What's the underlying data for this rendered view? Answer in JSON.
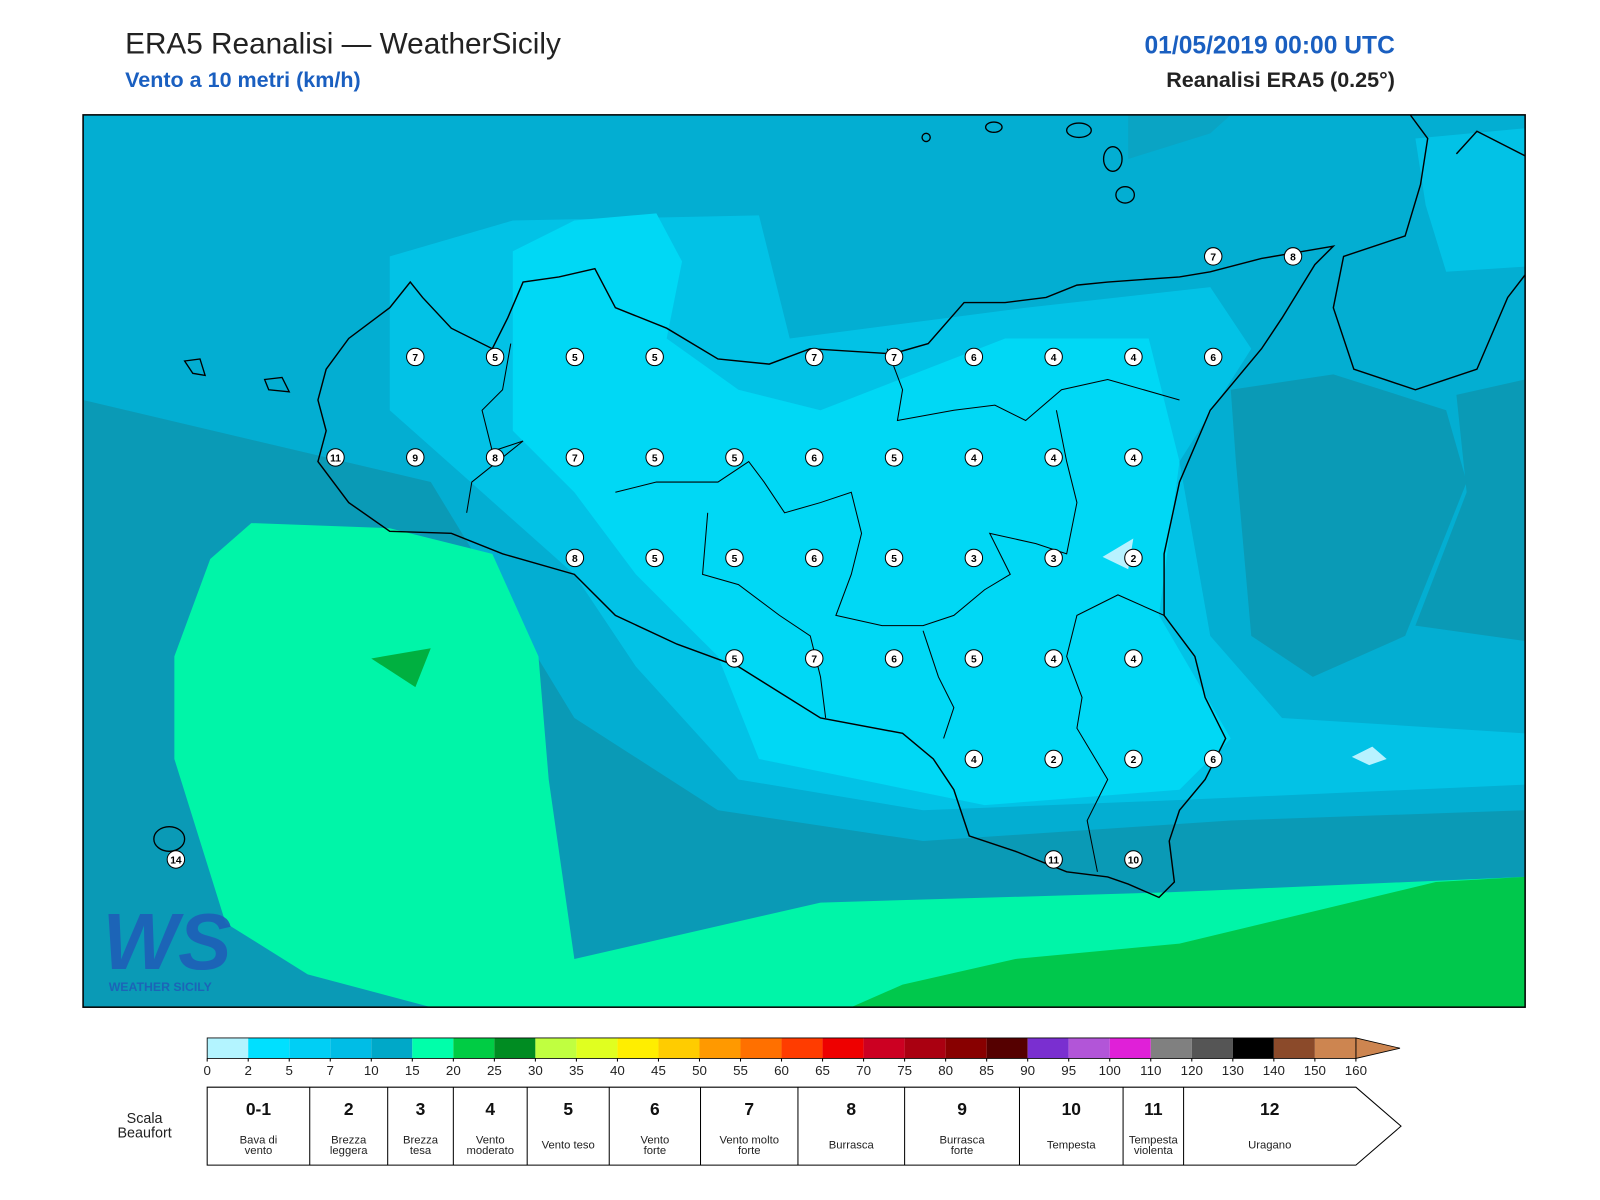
{
  "header": {
    "title": "ERA5 Reanalisi — WeatherSicily",
    "subtitle": "Vento a 10 metri (km/h)",
    "date": "01/05/2019 00:00 UTC",
    "source": "Reanalisi ERA5 (0.25°)"
  },
  "logo": {
    "mark": "WS",
    "name": "WEATHER SICILY"
  },
  "stations": [
    {
      "value": 7
    },
    {
      "value": 8
    },
    {
      "value": 7
    },
    {
      "value": 5
    },
    {
      "value": 5
    },
    {
      "value": 5
    },
    {
      "value": 7
    },
    {
      "value": 7
    },
    {
      "value": 6
    },
    {
      "value": 4
    },
    {
      "value": 4
    },
    {
      "value": 6
    },
    {
      "value": 11
    },
    {
      "value": 9
    },
    {
      "value": 8
    },
    {
      "value": 7
    },
    {
      "value": 5
    },
    {
      "value": 5
    },
    {
      "value": 6
    },
    {
      "value": 5
    },
    {
      "value": 4
    },
    {
      "value": 4
    },
    {
      "value": 4
    },
    {
      "value": 8
    },
    {
      "value": 5
    },
    {
      "value": 5
    },
    {
      "value": 6
    },
    {
      "value": 5
    },
    {
      "value": 3
    },
    {
      "value": 3
    },
    {
      "value": 2
    },
    {
      "value": 5
    },
    {
      "value": 7
    },
    {
      "value": 6
    },
    {
      "value": 5
    },
    {
      "value": 4
    },
    {
      "value": 4
    },
    {
      "value": 4
    },
    {
      "value": 2
    },
    {
      "value": 2
    },
    {
      "value": 6
    },
    {
      "value": 14
    },
    {
      "value": 11
    },
    {
      "value": 10
    }
  ],
  "colorbar": {
    "ticks": [
      0,
      2,
      5,
      7,
      10,
      15,
      20,
      25,
      30,
      35,
      40,
      45,
      50,
      55,
      60,
      65,
      70,
      75,
      80,
      85,
      90,
      95,
      100,
      110,
      120,
      130,
      140,
      150,
      160
    ],
    "colors": [
      "#b3f4ff",
      "#00e0ff",
      "#00cff5",
      "#00bde6",
      "#00a8c8",
      "#00ffaa",
      "#00cc44",
      "#008c22",
      "#c0ff40",
      "#e0ff20",
      "#ffee00",
      "#ffcc00",
      "#ff9900",
      "#ff7000",
      "#ff3c00",
      "#ee0000",
      "#cc0022",
      "#aa0011",
      "#880000",
      "#550000",
      "#7a2fd0",
      "#b255d8",
      "#e020d8",
      "#808080",
      "#555555",
      "#000000",
      "#8b4a2a",
      "#cd8550"
    ],
    "extend_color": "#cd8550"
  },
  "beaufort": {
    "label": [
      "Scala",
      "Beaufort"
    ],
    "levels": [
      {
        "force": "0-1",
        "description": [
          "Bava di",
          "vento"
        ]
      },
      {
        "force": "2",
        "description": [
          "Brezza",
          "leggera"
        ]
      },
      {
        "force": "3",
        "description": [
          "Brezza",
          "tesa"
        ]
      },
      {
        "force": "4",
        "description": [
          "Vento",
          "moderato"
        ]
      },
      {
        "force": "5",
        "description": [
          "Vento teso"
        ]
      },
      {
        "force": "6",
        "description": [
          "Vento",
          "forte"
        ]
      },
      {
        "force": "7",
        "description": [
          "Vento molto",
          "forte"
        ]
      },
      {
        "force": "8",
        "description": [
          "Burrasca"
        ]
      },
      {
        "force": "9",
        "description": [
          "Burrasca",
          "forte"
        ]
      },
      {
        "force": "10",
        "description": [
          "Tempesta"
        ]
      },
      {
        "force": "11",
        "description": [
          "Tempesta",
          "violenta"
        ]
      },
      {
        "force": "12",
        "description": [
          "Uragano"
        ]
      }
    ]
  }
}
